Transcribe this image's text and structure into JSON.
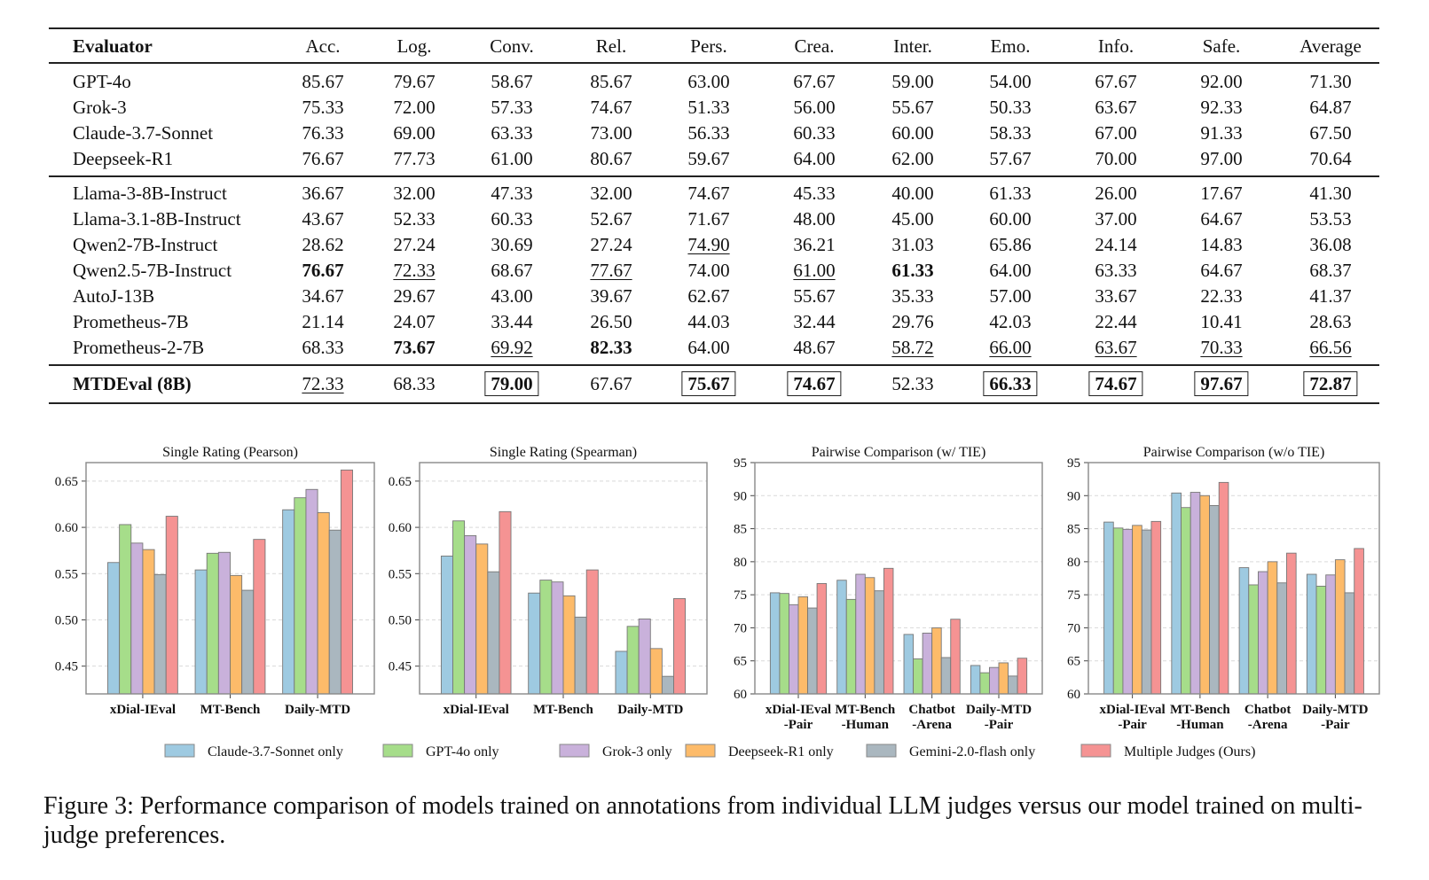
{
  "table": {
    "columns": [
      "Evaluator",
      "Acc.",
      "Log.",
      "Conv.",
      "Rel.",
      "Pers.",
      "Crea.",
      "Inter.",
      "Emo.",
      "Info.",
      "Safe.",
      "Average"
    ],
    "groups": [
      {
        "rows": [
          {
            "name": "GPT-4o",
            "values": [
              "85.67",
              "79.67",
              "58.67",
              "85.67",
              "63.00",
              "67.67",
              "59.00",
              "54.00",
              "67.67",
              "92.00",
              "71.30"
            ],
            "styles": [
              "",
              "",
              "",
              "",
              "",
              "",
              "",
              "",
              "",
              "",
              ""
            ]
          },
          {
            "name": "Grok-3",
            "values": [
              "75.33",
              "72.00",
              "57.33",
              "74.67",
              "51.33",
              "56.00",
              "55.67",
              "50.33",
              "63.67",
              "92.33",
              "64.87"
            ],
            "styles": [
              "",
              "",
              "",
              "",
              "",
              "",
              "",
              "",
              "",
              "",
              ""
            ]
          },
          {
            "name": "Claude-3.7-Sonnet",
            "values": [
              "76.33",
              "69.00",
              "63.33",
              "73.00",
              "56.33",
              "60.33",
              "60.00",
              "58.33",
              "67.00",
              "91.33",
              "67.50"
            ],
            "styles": [
              "",
              "",
              "",
              "",
              "",
              "",
              "",
              "",
              "",
              "",
              ""
            ]
          },
          {
            "name": "Deepseek-R1",
            "values": [
              "76.67",
              "77.73",
              "61.00",
              "80.67",
              "59.67",
              "64.00",
              "62.00",
              "57.67",
              "70.00",
              "97.00",
              "70.64"
            ],
            "styles": [
              "",
              "",
              "",
              "",
              "",
              "",
              "",
              "",
              "",
              "",
              ""
            ]
          }
        ]
      },
      {
        "rows": [
          {
            "name": "Llama-3-8B-Instruct",
            "values": [
              "36.67",
              "32.00",
              "47.33",
              "32.00",
              "74.67",
              "45.33",
              "40.00",
              "61.33",
              "26.00",
              "17.67",
              "41.30"
            ],
            "styles": [
              "",
              "",
              "",
              "",
              "",
              "",
              "",
              "",
              "",
              "",
              ""
            ]
          },
          {
            "name": "Llama-3.1-8B-Instruct",
            "values": [
              "43.67",
              "52.33",
              "60.33",
              "52.67",
              "71.67",
              "48.00",
              "45.00",
              "60.00",
              "37.00",
              "64.67",
              "53.53"
            ],
            "styles": [
              "",
              "",
              "",
              "",
              "",
              "",
              "",
              "",
              "",
              "",
              ""
            ]
          },
          {
            "name": "Qwen2-7B-Instruct",
            "values": [
              "28.62",
              "27.24",
              "30.69",
              "27.24",
              "74.90",
              "36.21",
              "31.03",
              "65.86",
              "24.14",
              "14.83",
              "36.08"
            ],
            "styles": [
              "",
              "",
              "",
              "",
              "underline",
              "",
              "",
              "",
              "",
              "",
              ""
            ]
          },
          {
            "name": "Qwen2.5-7B-Instruct",
            "values": [
              "76.67",
              "72.33",
              "68.67",
              "77.67",
              "74.00",
              "61.00",
              "61.33",
              "64.00",
              "63.33",
              "64.67",
              "68.37"
            ],
            "styles": [
              "bold",
              "underline",
              "",
              "underline",
              "",
              "underline",
              "bold",
              "",
              "",
              "",
              ""
            ]
          },
          {
            "name": "AutoJ-13B",
            "values": [
              "34.67",
              "29.67",
              "43.00",
              "39.67",
              "62.67",
              "55.67",
              "35.33",
              "57.00",
              "33.67",
              "22.33",
              "41.37"
            ],
            "styles": [
              "",
              "",
              "",
              "",
              "",
              "",
              "",
              "",
              "",
              "",
              ""
            ]
          },
          {
            "name": "Prometheus-7B",
            "values": [
              "21.14",
              "24.07",
              "33.44",
              "26.50",
              "44.03",
              "32.44",
              "29.76",
              "42.03",
              "22.44",
              "10.41",
              "28.63"
            ],
            "styles": [
              "",
              "",
              "",
              "",
              "",
              "",
              "",
              "",
              "",
              "",
              ""
            ]
          },
          {
            "name": "Prometheus-2-7B",
            "values": [
              "68.33",
              "73.67",
              "69.92",
              "82.33",
              "64.00",
              "48.67",
              "58.72",
              "66.00",
              "63.67",
              "70.33",
              "66.56"
            ],
            "styles": [
              "",
              "bold",
              "underline",
              "bold",
              "",
              "",
              "underline",
              "underline",
              "underline",
              "underline",
              "underline"
            ]
          }
        ]
      },
      {
        "rows": [
          {
            "name": "MTDEval (8B)",
            "name_bold": true,
            "values": [
              "72.33",
              "68.33",
              "79.00",
              "67.67",
              "75.67",
              "74.67",
              "52.33",
              "66.33",
              "74.67",
              "97.67",
              "72.87"
            ],
            "styles": [
              "underline",
              "",
              "boxed",
              "",
              "boxed",
              "boxed",
              "",
              "boxed",
              "boxed",
              "boxed",
              "boxed"
            ]
          }
        ]
      }
    ]
  },
  "legend": [
    {
      "label": "Claude-3.7-Sonnet only",
      "color": "#9ecae1"
    },
    {
      "label": "GPT-4o only",
      "color": "#a6dd8a"
    },
    {
      "label": "Grok-3 only",
      "color": "#c9b1db"
    },
    {
      "label": "Deepseek-R1 only",
      "color": "#fdbb6a"
    },
    {
      "label": "Gemini-2.0-flash only",
      "color": "#aab7bf"
    },
    {
      "label": "Multiple Judges (Ours)",
      "color": "#f59393"
    }
  ],
  "chart_data": [
    {
      "type": "bar",
      "title": "Single Rating (Pearson)",
      "xlabel": "",
      "ylabel": "",
      "ylim": [
        0.42,
        0.67
      ],
      "yticks": [
        "0.45",
        "0.50",
        "0.55",
        "0.60",
        "0.65"
      ],
      "grid": true,
      "categories": [
        [
          "xDial-IEval"
        ],
        [
          "MT-Bench"
        ],
        [
          "Daily-MTD"
        ]
      ],
      "series": [
        {
          "name": "Claude-3.7-Sonnet only",
          "values": [
            0.562,
            0.554,
            0.619
          ]
        },
        {
          "name": "GPT-4o only",
          "values": [
            0.603,
            0.572,
            0.632
          ]
        },
        {
          "name": "Grok-3 only",
          "values": [
            0.583,
            0.573,
            0.641
          ]
        },
        {
          "name": "Deepseek-R1 only",
          "values": [
            0.576,
            0.548,
            0.616
          ]
        },
        {
          "name": "Gemini-2.0-flash only",
          "values": [
            0.549,
            0.532,
            0.597
          ]
        },
        {
          "name": "Multiple Judges (Ours)",
          "values": [
            0.612,
            0.587,
            0.662
          ]
        }
      ]
    },
    {
      "type": "bar",
      "title": "Single Rating (Spearman)",
      "xlabel": "",
      "ylabel": "",
      "ylim": [
        0.42,
        0.67
      ],
      "yticks": [
        "0.45",
        "0.50",
        "0.55",
        "0.60",
        "0.65"
      ],
      "grid": true,
      "categories": [
        [
          "xDial-IEval"
        ],
        [
          "MT-Bench"
        ],
        [
          "Daily-MTD"
        ]
      ],
      "series": [
        {
          "name": "Claude-3.7-Sonnet only",
          "values": [
            0.569,
            0.529,
            0.466
          ]
        },
        {
          "name": "GPT-4o only",
          "values": [
            0.607,
            0.543,
            0.493
          ]
        },
        {
          "name": "Grok-3 only",
          "values": [
            0.591,
            0.541,
            0.501
          ]
        },
        {
          "name": "Deepseek-R1 only",
          "values": [
            0.582,
            0.526,
            0.469
          ]
        },
        {
          "name": "Gemini-2.0-flash only",
          "values": [
            0.552,
            0.503,
            0.439
          ]
        },
        {
          "name": "Multiple Judges (Ours)",
          "values": [
            0.617,
            0.554,
            0.523
          ]
        }
      ]
    },
    {
      "type": "bar",
      "title": "Pairwise Comparison (w/ TIE)",
      "xlabel": "",
      "ylabel": "",
      "ylim": [
        60,
        95
      ],
      "yticks": [
        "60",
        "65",
        "70",
        "75",
        "80",
        "85",
        "90",
        "95"
      ],
      "grid": true,
      "categories": [
        [
          "xDial-IEval",
          "-Pair"
        ],
        [
          "MT-Bench",
          "-Human"
        ],
        [
          "Chatbot",
          "-Arena"
        ],
        [
          "Daily-MTD",
          "-Pair"
        ]
      ],
      "series": [
        {
          "name": "Claude-3.7-Sonnet only",
          "values": [
            75.3,
            77.2,
            69.0,
            64.3
          ]
        },
        {
          "name": "GPT-4o only",
          "values": [
            75.2,
            74.3,
            65.3,
            63.2
          ]
        },
        {
          "name": "Grok-3 only",
          "values": [
            73.5,
            78.1,
            69.2,
            64.0
          ]
        },
        {
          "name": "Deepseek-R1 only",
          "values": [
            74.7,
            77.6,
            70.0,
            64.7
          ]
        },
        {
          "name": "Gemini-2.0-flash only",
          "values": [
            73.0,
            75.6,
            65.5,
            62.7
          ]
        },
        {
          "name": "Multiple Judges (Ours)",
          "values": [
            76.7,
            79.0,
            71.3,
            65.4
          ]
        }
      ]
    },
    {
      "type": "bar",
      "title": "Pairwise Comparison (w/o TIE)",
      "xlabel": "",
      "ylabel": "",
      "ylim": [
        60,
        95
      ],
      "yticks": [
        "60",
        "65",
        "70",
        "75",
        "80",
        "85",
        "90",
        "95"
      ],
      "grid": true,
      "categories": [
        [
          "xDial-IEval",
          "-Pair"
        ],
        [
          "MT-Bench",
          "-Human"
        ],
        [
          "Chatbot",
          "-Arena"
        ],
        [
          "Daily-MTD",
          "-Pair"
        ]
      ],
      "series": [
        {
          "name": "Claude-3.7-Sonnet only",
          "values": [
            86.0,
            90.4,
            79.1,
            78.1
          ]
        },
        {
          "name": "GPT-4o only",
          "values": [
            85.1,
            88.2,
            76.5,
            76.3
          ]
        },
        {
          "name": "Grok-3 only",
          "values": [
            84.9,
            90.5,
            78.5,
            78.0
          ]
        },
        {
          "name": "Deepseek-R1 only",
          "values": [
            85.5,
            90.0,
            80.0,
            80.3
          ]
        },
        {
          "name": "Gemini-2.0-flash only",
          "values": [
            84.8,
            88.5,
            76.8,
            75.3
          ]
        },
        {
          "name": "Multiple Judges (Ours)",
          "values": [
            86.1,
            92.0,
            81.3,
            82.0
          ]
        }
      ]
    }
  ],
  "caption": "Figure 3: Performance comparison of models trained on annotations from individual LLM judges versus our model trained on multi-judge preferences."
}
